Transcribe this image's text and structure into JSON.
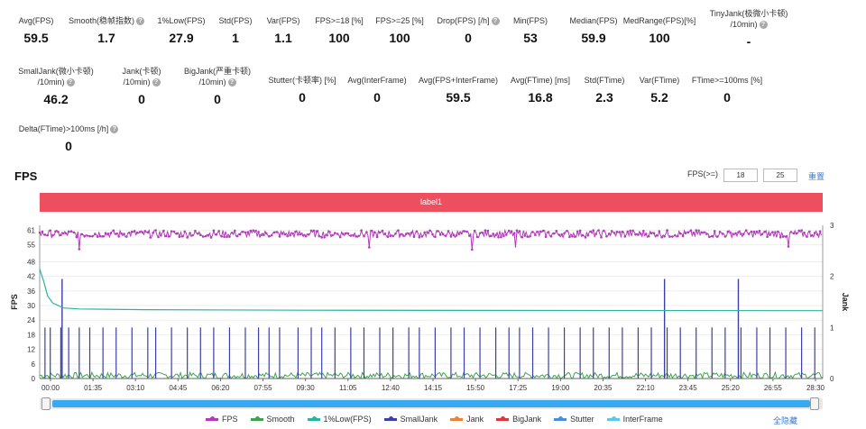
{
  "stats_row1": [
    {
      "name": "avg-fps",
      "label": "Avg(FPS)",
      "value": "59.5",
      "help": false
    },
    {
      "name": "smooth",
      "label": "Smooth(稳帧指数)",
      "value": "1.7",
      "help": true
    },
    {
      "name": "low1-fps",
      "label": "1%Low(FPS)",
      "value": "27.9",
      "help": false
    },
    {
      "name": "std-fps",
      "label": "Std(FPS)",
      "value": "1",
      "help": false
    },
    {
      "name": "var-fps",
      "label": "Var(FPS)",
      "value": "1.1",
      "help": false
    },
    {
      "name": "fps-ge-18",
      "label": "FPS>=18 [%]",
      "value": "100",
      "help": false
    },
    {
      "name": "fps-ge-25",
      "label": "FPS>=25 [%]",
      "value": "100",
      "help": false
    },
    {
      "name": "drop-fps",
      "label": "Drop(FPS) [/h]",
      "value": "0",
      "help": true
    },
    {
      "name": "min-fps",
      "label": "Min(FPS)",
      "value": "53",
      "help": false
    },
    {
      "name": "median-fps",
      "label": "Median(FPS)",
      "value": "59.9",
      "help": false
    },
    {
      "name": "medrange-fps",
      "label": "MedRange(FPS)[%]",
      "value": "100",
      "help": false
    },
    {
      "name": "tinyjank",
      "label": "TinyJank(极微小卡顿)",
      "label2": "/10min)",
      "value": "-",
      "help": true
    }
  ],
  "stats_row2": [
    {
      "name": "smalljank",
      "label": "SmallJank(微小卡顿)",
      "label2": "/10min)",
      "value": "46.2",
      "help": true
    },
    {
      "name": "jank",
      "label": "Jank(卡顿)",
      "label2": "/10min)",
      "value": "0",
      "help": true
    },
    {
      "name": "bigjank",
      "label": "BigJank(严重卡顿)",
      "label2": "/10min)",
      "value": "0",
      "help": true
    },
    {
      "name": "stutter",
      "label": "Stutter(卡顿率) [%]",
      "value": "0",
      "help": false
    },
    {
      "name": "avg-interframe",
      "label": "Avg(InterFrame)",
      "value": "0",
      "help": false
    },
    {
      "name": "avg-fps-interframe",
      "label": "Avg(FPS+InterFrame)",
      "value": "59.5",
      "help": false
    },
    {
      "name": "avg-ftime",
      "label": "Avg(FTime) [ms]",
      "value": "16.8",
      "help": false
    },
    {
      "name": "std-ftime",
      "label": "Std(FTime)",
      "value": "2.3",
      "help": false
    },
    {
      "name": "var-ftime",
      "label": "Var(FTime)",
      "value": "5.2",
      "help": false
    },
    {
      "name": "ftime-gt-100",
      "label": "FTime>=100ms [%]",
      "value": "0",
      "help": false
    }
  ],
  "stats_row3": [
    {
      "name": "delta-ftime",
      "label": "Delta(FTime)>100ms [/h]",
      "value": "0",
      "help": true
    }
  ],
  "fps_section": {
    "title": "FPS",
    "threshold_label": "FPS(>=)",
    "threshold_a": "18",
    "threshold_b": "25",
    "reset_label": "重置",
    "label_bar": "label1",
    "hide_all": "全隐藏"
  },
  "chart_data": {
    "type": "line",
    "title": "",
    "xlabel": "",
    "ylabel": "FPS",
    "y2label": "Jank",
    "ylim": [
      0,
      63
    ],
    "y_ticks": [
      0,
      6,
      12,
      18,
      24,
      30,
      36,
      42,
      48,
      55,
      61
    ],
    "y2lim": [
      0,
      3
    ],
    "y2_ticks": [
      0,
      1,
      2,
      3
    ],
    "x_ticks": [
      "00:00",
      "01:35",
      "03:10",
      "04:45",
      "06:20",
      "07:55",
      "09:30",
      "11:05",
      "12:40",
      "14:15",
      "15:50",
      "17:25",
      "19:00",
      "20:35",
      "22:10",
      "23:45",
      "25:20",
      "26:55",
      "28:30"
    ],
    "x_range_minutes": [
      0,
      29.7
    ],
    "grid": true,
    "legend_position": "bottom",
    "series": [
      {
        "name": "FPS",
        "color": "#b23bb8",
        "summary": {
          "typical": 59.5,
          "min": 53,
          "max": 61
        }
      },
      {
        "name": "Smooth",
        "color": "#3fa34d"
      },
      {
        "name": "1%Low(FPS)",
        "color": "#2bb3a0",
        "summary": {
          "start": 45,
          "steady": 27.9
        }
      },
      {
        "name": "SmallJank",
        "color": "#3b3fa8",
        "summary": {
          "per_10min": 46.2,
          "spike_max": 2
        }
      },
      {
        "name": "Jank",
        "color": "#e8833a",
        "summary": {
          "value": 0
        }
      },
      {
        "name": "BigJank",
        "color": "#d9363e",
        "summary": {
          "value": 0
        }
      },
      {
        "name": "Stutter",
        "color": "#4a90d9",
        "summary": {
          "value": 0
        }
      },
      {
        "name": "InterFrame",
        "color": "#5bc8e8",
        "summary": {
          "value": 0
        }
      }
    ],
    "jank_spikes_minutes": [
      0.2,
      0.4,
      0.8,
      1.1,
      1.5,
      1.9,
      2.4,
      2.9,
      3.5,
      4.1,
      4.4,
      5.0,
      5.6,
      6.1,
      6.6,
      7.2,
      7.8,
      8.3,
      8.7,
      9.1,
      9.8,
      10.3,
      10.7,
      11.2,
      11.8,
      12.3,
      12.9,
      13.4,
      14.0,
      14.4,
      15.0,
      15.6,
      16.1,
      16.7,
      17.3,
      17.8,
      18.2,
      18.7,
      19.3,
      19.9,
      20.5,
      21.0,
      21.6,
      22.1,
      22.7,
      23.2,
      23.8,
      24.3,
      24.9,
      25.5,
      26.0,
      26.6,
      27.2,
      27.7,
      28.3,
      28.9,
      29.4
    ],
    "jank_tall_spikes": [
      {
        "minute": 0.85,
        "value": 1.95
      },
      {
        "minute": 23.7,
        "value": 1.95
      },
      {
        "minute": 26.5,
        "value": 1.95
      }
    ]
  }
}
